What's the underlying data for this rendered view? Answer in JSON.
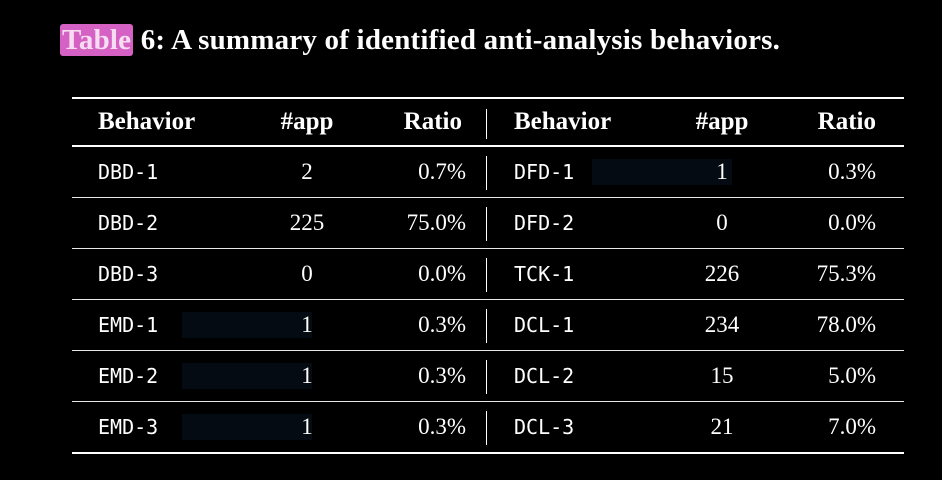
{
  "caption": {
    "label": "Table",
    "text": "6: A summary of identified anti-analysis behaviors."
  },
  "table": {
    "headers": [
      "Behavior",
      "#app",
      "Ratio",
      "Behavior",
      "#app",
      "Ratio"
    ],
    "rows": [
      [
        "DBD-1",
        "2",
        "0.7%",
        "DFD-1",
        "1",
        "0.3%"
      ],
      [
        "DBD-2",
        "225",
        "75.0%",
        "DFD-2",
        "0",
        "0.0%"
      ],
      [
        "DBD-3",
        "0",
        "0.0%",
        "TCK-1",
        "226",
        "75.3%"
      ],
      [
        "EMD-1",
        "1",
        "0.3%",
        "DCL-1",
        "234",
        "78.0%"
      ],
      [
        "EMD-2",
        "1",
        "0.3%",
        "DCL-2",
        "15",
        "5.0%"
      ],
      [
        "EMD-3",
        "1",
        "0.3%",
        "DCL-3",
        "21",
        "7.0%"
      ]
    ]
  },
  "colors": {
    "background": "#000000",
    "text": "#ffffff",
    "highlight": "#d561c4"
  }
}
